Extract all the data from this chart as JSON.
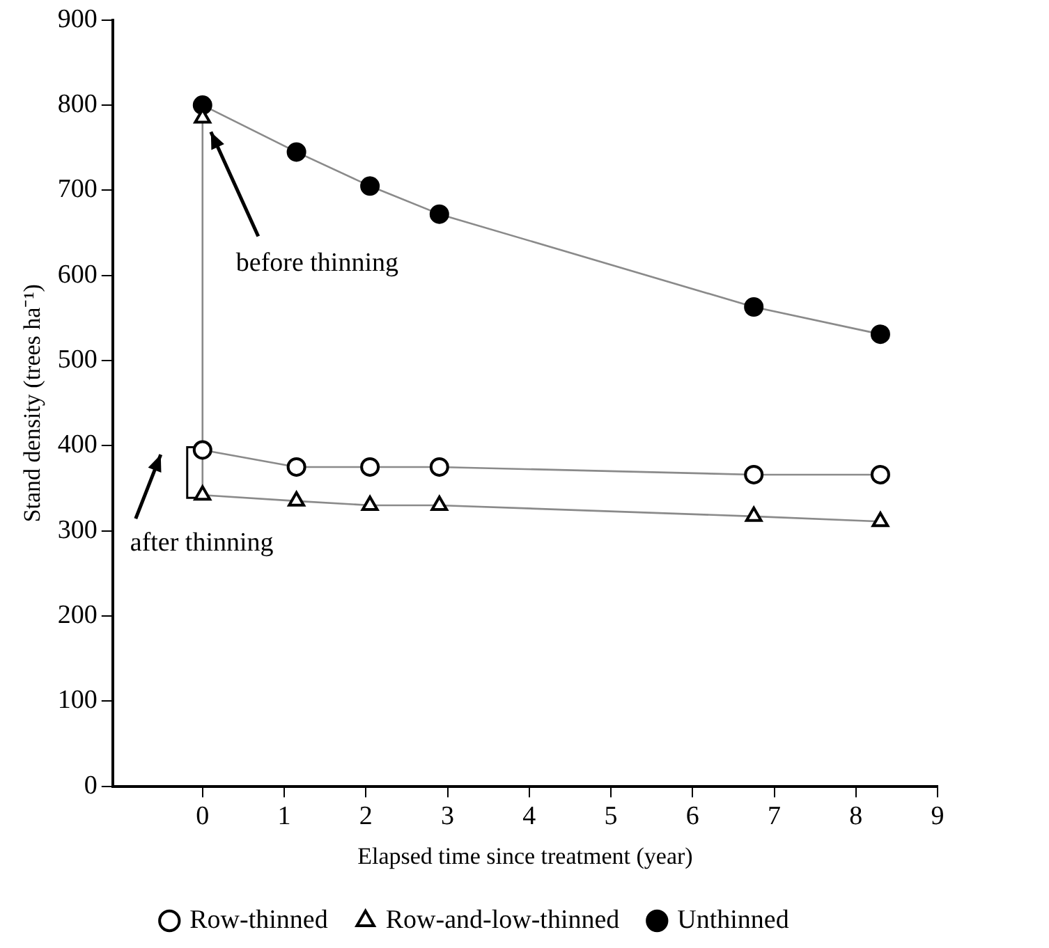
{
  "chart_data": {
    "type": "line",
    "xlabel": "Elapsed time since treatment (year)",
    "ylabel": "Stand density (trees ha⁻¹)",
    "xlim": [
      -1.1,
      9
    ],
    "xticks": [
      0,
      1,
      2,
      3,
      4,
      5,
      6,
      7,
      8,
      9
    ],
    "ylim": [
      0,
      900
    ],
    "yticks": [
      0,
      100,
      200,
      300,
      400,
      500,
      600,
      700,
      800,
      900
    ],
    "grid": false,
    "legend": "bottom",
    "series": [
      {
        "name": "Row-thinned",
        "color": "#ffffff",
        "marker": "circle",
        "x": [
          0,
          1.15,
          2.05,
          2.9,
          6.75,
          8.3
        ],
        "values": [
          395,
          375,
          375,
          375,
          366,
          366
        ]
      },
      {
        "name": "Row-and-low-thinned",
        "color": "#ffffff",
        "marker": "triangle",
        "x": [
          0,
          0,
          1.15,
          2.05,
          2.9,
          6.75,
          8.3
        ],
        "values": [
          785,
          342,
          335,
          330,
          330,
          317,
          311
        ]
      },
      {
        "name": "Unthinned",
        "color": "#000000",
        "marker": "circle",
        "x": [
          0,
          1.15,
          2.05,
          2.9,
          6.75,
          8.3
        ],
        "values": [
          800,
          745,
          705,
          672,
          563,
          531
        ]
      }
    ],
    "annotations": [
      "before thinning",
      {
        "text": "after thinning",
        "x": 0,
        "y": 370
      }
    ]
  }
}
